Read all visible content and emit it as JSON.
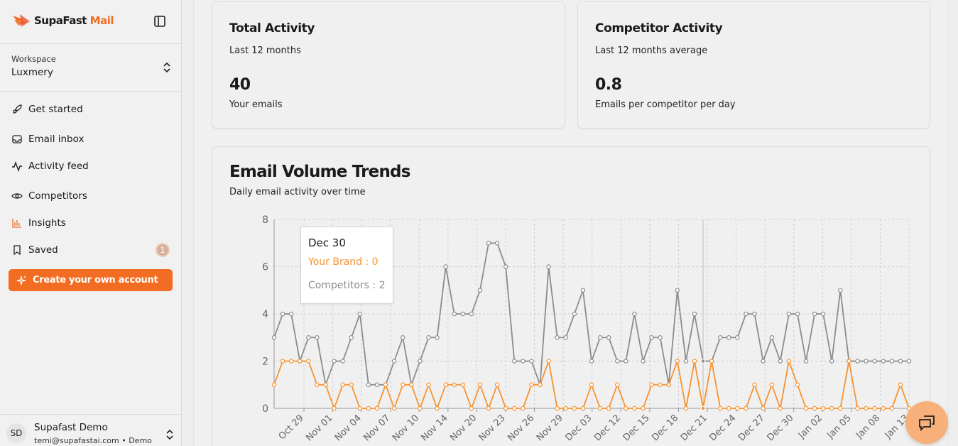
{
  "brand": {
    "name_part1": "SupaFast",
    "name_part2": " Mail"
  },
  "workspace": {
    "label": "Workspace",
    "name": "Luxmery"
  },
  "nav": [
    {
      "label": "Get started",
      "icon": "rocket-icon"
    },
    {
      "label": "Email inbox",
      "icon": "inbox-icon"
    },
    {
      "label": "Activity feed",
      "icon": "activity-icon"
    },
    {
      "label": "Competitors",
      "icon": "eye-icon"
    },
    {
      "label": "Insights",
      "icon": "bar-chart-icon"
    },
    {
      "label": "Saved",
      "icon": "bookmark-icon",
      "badge": "1"
    }
  ],
  "cta": {
    "label": "Create your own account"
  },
  "user": {
    "initials": "SD",
    "name": "Supafast Demo",
    "email": "temi@supafastai.com • Demo"
  },
  "cards": {
    "total": {
      "title": "Total Activity",
      "subtitle": "Last 12 months",
      "value": "40",
      "desc": "Your emails"
    },
    "competitor": {
      "title": "Competitor Activity",
      "subtitle": "Last 12 months average",
      "value": "0.8",
      "desc": "Emails per competitor per day"
    }
  },
  "trends": {
    "title": "Email Volume Trends",
    "subtitle": "Daily email activity over time"
  },
  "tooltip": {
    "title": "Dec 30",
    "brand_line": "Your Brand : 0",
    "comp_line": "Competitors : 2"
  },
  "colors": {
    "accent": "#f26d21",
    "brand_series": "#f7922e",
    "competitor_series": "#8c8c8c"
  },
  "chart_data": {
    "type": "line",
    "ylim": [
      0,
      8
    ],
    "yticks": [
      0,
      2,
      4,
      6,
      8
    ],
    "grid": true,
    "xticks": [
      "Oct 29",
      "Nov 01",
      "Nov 04",
      "Nov 07",
      "Nov 10",
      "Nov 14",
      "Nov 20",
      "Nov 23",
      "Nov 26",
      "Nov 29",
      "Dec 03",
      "Dec 12",
      "Dec 15",
      "Dec 18",
      "Dec 21",
      "Dec 24",
      "Dec 27",
      "Dec 30",
      "Jan 02",
      "Jan 05",
      "Jan 08",
      "Jan 13"
    ],
    "series": [
      {
        "name": "Your Brand",
        "color": "#f7922e",
        "values": [
          1,
          2,
          2,
          2,
          2,
          1,
          1,
          0,
          1,
          1,
          0,
          0,
          0,
          1,
          0,
          1,
          1,
          0,
          1,
          0,
          1,
          1,
          1,
          0,
          1,
          0,
          1,
          0,
          0,
          0,
          1,
          1,
          2,
          0,
          0,
          0,
          0,
          1,
          0,
          0,
          1,
          0,
          0,
          0,
          1,
          1,
          1,
          2,
          0,
          2,
          0,
          2,
          0,
          0,
          0,
          0,
          1,
          0,
          1,
          0,
          2,
          1,
          0,
          0,
          0,
          0,
          0,
          2,
          0,
          0,
          0,
          0,
          0,
          1,
          0
        ]
      },
      {
        "name": "Competitors",
        "color": "#8c8c8c",
        "values": [
          3,
          4,
          4,
          2,
          3,
          3,
          1,
          2,
          2,
          3,
          4,
          1,
          1,
          1,
          2,
          3,
          1,
          2,
          3,
          3,
          6,
          4,
          4,
          4,
          5,
          7,
          7,
          6,
          2,
          2,
          2,
          1,
          6,
          3,
          3,
          4,
          5,
          2,
          3,
          3,
          2,
          2,
          4,
          2,
          3,
          3,
          1,
          5,
          2,
          4,
          2,
          2,
          3,
          3,
          3,
          4,
          4,
          2,
          3,
          2,
          4,
          4,
          2,
          4,
          4,
          2,
          5,
          2,
          2,
          2,
          2,
          2,
          2,
          2,
          2
        ]
      }
    ],
    "tooltip_index": 50
  }
}
